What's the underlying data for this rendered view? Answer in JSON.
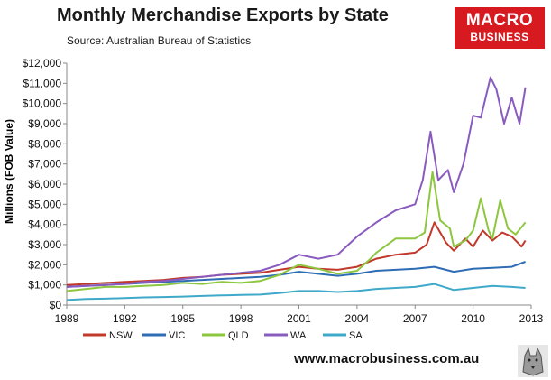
{
  "header": {
    "title": "Monthly  Merchandise  Exports  by  State",
    "source": "Source:  Australian Bureau of Statistics"
  },
  "brand": {
    "line1": "MACRO",
    "line2": "BUSINESS",
    "color": "#d71920"
  },
  "footer": {
    "url": "www.macrobusiness.com.au"
  },
  "chart_data": {
    "type": "line",
    "title": "Monthly  Merchandise  Exports  by  State",
    "ylabel": "Millions (FOB Value)",
    "xlabel": "",
    "xlim": [
      1989,
      2013
    ],
    "ylim": [
      0,
      12000
    ],
    "x_ticks": [
      "1989",
      "1992",
      "1995",
      "1998",
      "2001",
      "2004",
      "2007",
      "2010",
      "2013"
    ],
    "y_ticks": [
      "$0",
      "$1,000",
      "$2,000",
      "$3,000",
      "$4,000",
      "$5,000",
      "$6,000",
      "$7,000",
      "$8,000",
      "$9,000",
      "$10,000",
      "$11,000",
      "$12,000"
    ],
    "grid": false,
    "legend_position": "bottom",
    "series": [
      {
        "name": "NSW",
        "color": "#c0392b",
        "x": [
          1989,
          1990,
          1991,
          1992,
          1993,
          1994,
          1995,
          1996,
          1997,
          1998,
          1999,
          2000,
          2001,
          2002,
          2003,
          2004,
          2005,
          2006,
          2007,
          2007.6,
          2008,
          2008.6,
          2009,
          2009.6,
          2010,
          2010.5,
          2011,
          2011.5,
          2012,
          2012.5,
          2012.7
        ],
        "values": [
          1000,
          1050,
          1100,
          1150,
          1200,
          1250,
          1350,
          1400,
          1500,
          1550,
          1600,
          1750,
          1900,
          1800,
          1750,
          1900,
          2300,
          2500,
          2600,
          3000,
          4100,
          3100,
          2700,
          3300,
          2900,
          3700,
          3200,
          3600,
          3400,
          2900,
          3200
        ]
      },
      {
        "name": "VIC",
        "color": "#2e6db4",
        "x": [
          1989,
          1990,
          1991,
          1992,
          1993,
          1994,
          1995,
          1996,
          1997,
          1998,
          1999,
          2000,
          2001,
          2002,
          2003,
          2004,
          2005,
          2006,
          2007,
          2008,
          2009,
          2010,
          2011,
          2012,
          2012.7
        ],
        "values": [
          900,
          950,
          1000,
          1050,
          1100,
          1150,
          1200,
          1250,
          1300,
          1350,
          1400,
          1500,
          1650,
          1550,
          1450,
          1550,
          1700,
          1750,
          1800,
          1900,
          1650,
          1800,
          1850,
          1900,
          2150
        ]
      },
      {
        "name": "QLD",
        "color": "#8dc63f",
        "x": [
          1989,
          1990,
          1991,
          1992,
          1993,
          1994,
          1995,
          1996,
          1997,
          1998,
          1999,
          2000,
          2001,
          2002,
          2003,
          2004,
          2004.7,
          2005,
          2006,
          2007,
          2007.5,
          2007.9,
          2008.3,
          2008.8,
          2009,
          2009.6,
          2010,
          2010.4,
          2010.8,
          2011,
          2011.4,
          2011.8,
          2012.2,
          2012.7
        ],
        "values": [
          700,
          800,
          900,
          900,
          950,
          1000,
          1100,
          1050,
          1150,
          1100,
          1200,
          1500,
          2000,
          1800,
          1550,
          1700,
          2300,
          2600,
          3300,
          3300,
          3600,
          6600,
          4200,
          3800,
          2900,
          3200,
          3700,
          5300,
          3700,
          3300,
          5200,
          3800,
          3500,
          4100
        ]
      },
      {
        "name": "WA",
        "color": "#8a5bbf",
        "x": [
          1989,
          1990,
          1991,
          1992,
          1993,
          1994,
          1995,
          1996,
          1997,
          1998,
          1999,
          2000,
          2001,
          2002,
          2003,
          2004,
          2005,
          2006,
          2007,
          2007.4,
          2007.8,
          2008.2,
          2008.7,
          2009,
          2009.5,
          2010,
          2010.4,
          2010.9,
          2011.2,
          2011.6,
          2012,
          2012.4,
          2012.7
        ],
        "values": [
          900,
          950,
          1000,
          1050,
          1150,
          1200,
          1300,
          1400,
          1500,
          1600,
          1700,
          2000,
          2500,
          2300,
          2500,
          3400,
          4100,
          4700,
          5000,
          6200,
          8600,
          6200,
          6700,
          5600,
          7000,
          9400,
          9300,
          11300,
          10700,
          9000,
          10300,
          9000,
          10800
        ]
      },
      {
        "name": "SA",
        "color": "#3fa9c9",
        "x": [
          1989,
          1990,
          1991,
          1992,
          1993,
          1994,
          1995,
          1996,
          1997,
          1998,
          1999,
          2000,
          2001,
          2002,
          2003,
          2004,
          2005,
          2006,
          2007,
          2008,
          2009,
          2010,
          2011,
          2012,
          2012.7
        ],
        "values": [
          250,
          300,
          320,
          350,
          380,
          400,
          420,
          450,
          480,
          500,
          520,
          600,
          700,
          700,
          650,
          700,
          800,
          850,
          900,
          1050,
          750,
          850,
          950,
          900,
          850
        ]
      }
    ]
  }
}
